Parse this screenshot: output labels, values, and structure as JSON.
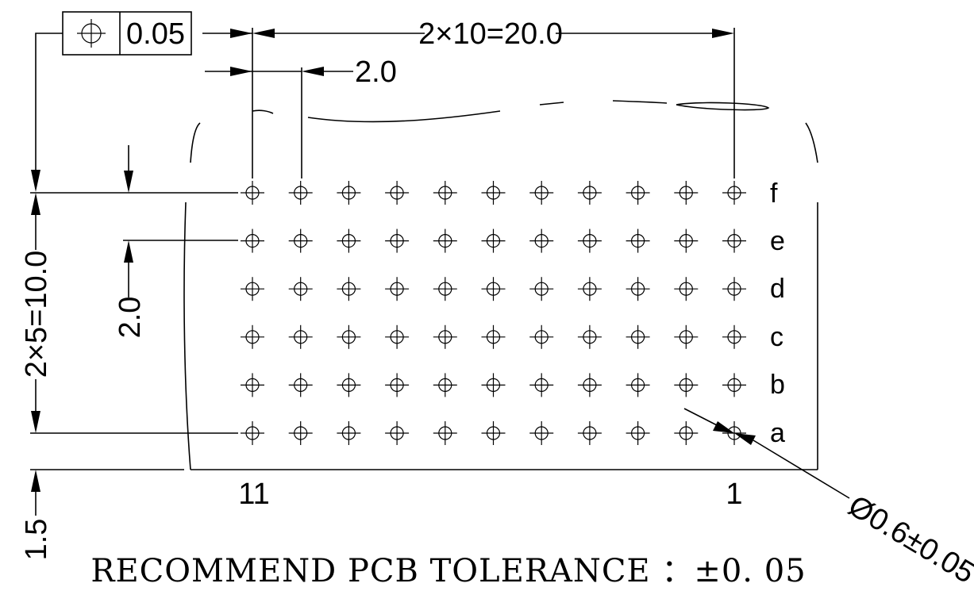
{
  "feature_control_frame": {
    "symbol": "position-tolerance",
    "value": "0.05"
  },
  "dimensions": {
    "horizontal_total": "2×10=20.0",
    "horizontal_pitch": "2.0",
    "vertical_total": "2×5=10.0",
    "vertical_pitch": "2.0",
    "edge_offset": "1.5",
    "hole_diameter": "Ø0.6±0.05"
  },
  "grid": {
    "columns": 11,
    "rows": 6
  },
  "row_labels": [
    "f",
    "e",
    "d",
    "c",
    "b",
    "a"
  ],
  "column_labels": {
    "left": "11",
    "right": "1"
  },
  "note": "RECOMMEND PCB TOLERANCE ：±0. 05"
}
